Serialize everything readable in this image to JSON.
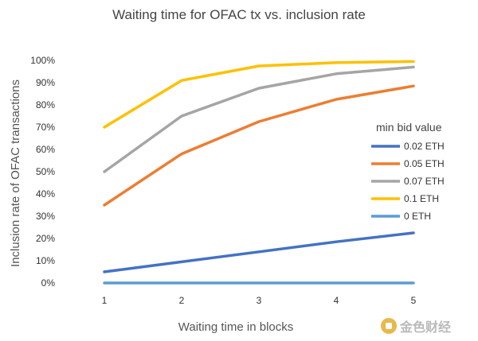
{
  "chart_data": {
    "type": "line",
    "title": "Waiting time for OFAC tx vs. inclusion rate",
    "xlabel": "Waiting time in blocks",
    "ylabel": "Inclusion rate of OFAC transactions",
    "categories": [
      "1",
      "2",
      "3",
      "4",
      "5"
    ],
    "ylim": [
      0,
      100
    ],
    "yticks": [
      "0%",
      "10%",
      "20%",
      "30%",
      "40%",
      "50%",
      "60%",
      "70%",
      "80%",
      "90%",
      "100%"
    ],
    "grid": false,
    "legend_title": "min bid value",
    "legend_position": "right",
    "series": [
      {
        "name": "0.02 ETH",
        "color": "#4472C4",
        "values": [
          5,
          9.5,
          14,
          18.5,
          22.5
        ]
      },
      {
        "name": "0.05 ETH",
        "color": "#ED7D31",
        "values": [
          35,
          58,
          72.5,
          82.5,
          88.5
        ]
      },
      {
        "name": "0.07 ETH",
        "color": "#A5A5A5",
        "values": [
          50,
          75,
          87.5,
          94,
          97
        ]
      },
      {
        "name": "0.1 ETH",
        "color": "#FFC000",
        "values": [
          70,
          91,
          97.5,
          99,
          99.5
        ]
      },
      {
        "name": "0 ETH",
        "color": "#5B9BD5",
        "values": [
          0,
          0,
          0,
          0,
          0
        ]
      }
    ]
  },
  "watermark": {
    "text": "金色财经",
    "icon": "gold-coin-logo"
  }
}
